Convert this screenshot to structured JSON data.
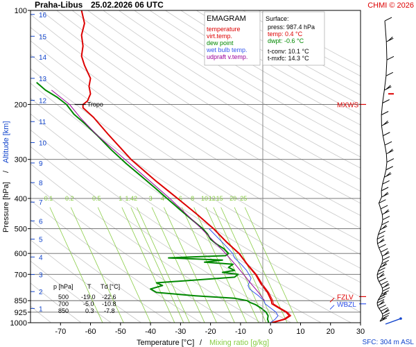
{
  "header": {
    "station": "Praha-Libus",
    "datetime": "25.02.2026 06 UTC",
    "copyright": "CHMI © 2026"
  },
  "chart_data": {
    "type": "line",
    "title": "EMAGRAM",
    "xlabel": "Temperature [°C]",
    "xlabel_sep": "/",
    "xlabel_mixing": "Mixing ratio [g/kg]",
    "ylabel_pressure": "Pressure [hPa]",
    "ylabel_sep": "/",
    "ylabel_altitude": "Altitude [km]",
    "xlim": [
      -80,
      30
    ],
    "ylim": [
      1000,
      100
    ],
    "x_ticks": [
      -70,
      -60,
      -50,
      -40,
      -30,
      -20,
      -10,
      0,
      10,
      20,
      30
    ],
    "pressure_ticks": [
      100,
      200,
      300,
      400,
      500,
      600,
      700,
      850,
      925,
      1000
    ],
    "pressure_gridlines": [
      200,
      300,
      400,
      500,
      600,
      700,
      850,
      925
    ],
    "altitude_ticks": [
      {
        "km": "1",
        "p": 900
      },
      {
        "km": "2",
        "p": 795
      },
      {
        "km": "3",
        "p": 701
      },
      {
        "km": "4",
        "p": 616
      },
      {
        "km": "5",
        "p": 540
      },
      {
        "km": "6",
        "p": 472
      },
      {
        "km": "7",
        "p": 411
      },
      {
        "km": "8",
        "p": 356
      },
      {
        "km": "9",
        "p": 308
      },
      {
        "km": "10",
        "p": 265
      },
      {
        "km": "11",
        "p": 227
      },
      {
        "km": "12",
        "p": 194
      },
      {
        "km": "13",
        "p": 165
      },
      {
        "km": "14",
        "p": 141
      },
      {
        "km": "15",
        "p": 121
      },
      {
        "km": "16",
        "p": 103
      }
    ],
    "mixing_ratio_labels": [
      "0.1",
      "0.2",
      "0.5",
      "1",
      "1.4",
      "2",
      "3",
      "4",
      "6",
      "8",
      "10",
      "12",
      "15",
      "20",
      "25"
    ],
    "mixing_ratio_label_x": [
      -74,
      -67,
      -58,
      -50,
      -47,
      -45,
      -40,
      -36,
      -30,
      -26,
      -22,
      -19.5,
      -17,
      -12.5,
      -9
    ],
    "mixing_ratio_label_p": 410,
    "series": [
      {
        "name": "temperature",
        "color": "#dd0000",
        "points": [
          [
            1000,
            0.4
          ],
          [
            975,
            4.5
          ],
          [
            950,
            6.3
          ],
          [
            925,
            5.2
          ],
          [
            900,
            3.0
          ],
          [
            870,
            0.5
          ],
          [
            850,
            0.3
          ],
          [
            800,
            -1.0
          ],
          [
            750,
            -3.2
          ],
          [
            700,
            -5.0
          ],
          [
            650,
            -7.8
          ],
          [
            600,
            -10.5
          ],
          [
            550,
            -14.8
          ],
          [
            500,
            -19.0
          ],
          [
            450,
            -24.5
          ],
          [
            400,
            -31.0
          ],
          [
            350,
            -38.5
          ],
          [
            300,
            -46.5
          ],
          [
            250,
            -54.0
          ],
          [
            220,
            -59.0
          ],
          [
            205,
            -62.5
          ],
          [
            200,
            -62.5
          ],
          [
            195,
            -61.0
          ],
          [
            185,
            -60.0
          ],
          [
            175,
            -60.5
          ],
          [
            165,
            -60.0
          ],
          [
            150,
            -62.0
          ],
          [
            140,
            -63.0
          ],
          [
            130,
            -62.5
          ],
          [
            120,
            -63.0
          ],
          [
            110,
            -62.0
          ],
          [
            100,
            -63.0
          ]
        ]
      },
      {
        "name": "virt.temp.",
        "color": "#dd0000",
        "points": [
          [
            1000,
            0.9
          ],
          [
            975,
            5.0
          ],
          [
            950,
            6.8
          ],
          [
            925,
            5.7
          ],
          [
            900,
            3.5
          ],
          [
            870,
            1.0
          ],
          [
            850,
            0.8
          ],
          [
            800,
            -0.6
          ],
          [
            750,
            -2.8
          ],
          [
            700,
            -4.7
          ],
          [
            650,
            -7.6
          ],
          [
            600,
            -10.3
          ],
          [
            550,
            -14.6
          ],
          [
            500,
            -18.9
          ],
          [
            450,
            -24.4
          ],
          [
            400,
            -30.9
          ],
          [
            350,
            -38.4
          ],
          [
            300,
            -46.4
          ],
          [
            250,
            -54.0
          ],
          [
            220,
            -59.0
          ],
          [
            205,
            -62.5
          ],
          [
            200,
            -62.5
          ]
        ]
      },
      {
        "name": "dew point",
        "color": "#008800",
        "points": [
          [
            1000,
            -0.6
          ],
          [
            975,
            -1.0
          ],
          [
            950,
            -0.8
          ],
          [
            925,
            -1.5
          ],
          [
            900,
            -3.0
          ],
          [
            875,
            -5.0
          ],
          [
            860,
            -7.0
          ],
          [
            850,
            -7.8
          ],
          [
            835,
            -12.0
          ],
          [
            820,
            -25.0
          ],
          [
            800,
            -38.0
          ],
          [
            780,
            -40.0
          ],
          [
            760,
            -36.0
          ],
          [
            745,
            -38.0
          ],
          [
            730,
            -25.0
          ],
          [
            715,
            -12.0
          ],
          [
            700,
            -10.8
          ],
          [
            690,
            -16.0
          ],
          [
            680,
            -12.0
          ],
          [
            665,
            -14.0
          ],
          [
            650,
            -12.5
          ],
          [
            640,
            -22.0
          ],
          [
            630,
            -16.0
          ],
          [
            620,
            -34.0
          ],
          [
            610,
            -15.0
          ],
          [
            600,
            -14.0
          ],
          [
            580,
            -15.5
          ],
          [
            560,
            -18.0
          ],
          [
            540,
            -20.0
          ],
          [
            520,
            -21.0
          ],
          [
            500,
            -22.6
          ],
          [
            470,
            -26.0
          ],
          [
            440,
            -29.5
          ],
          [
            400,
            -34.5
          ],
          [
            370,
            -38.5
          ],
          [
            340,
            -43.0
          ],
          [
            310,
            -48.0
          ],
          [
            280,
            -53.0
          ],
          [
            250,
            -58.0
          ],
          [
            230,
            -62.0
          ],
          [
            215,
            -65.5
          ],
          [
            200,
            -68.0
          ],
          [
            190,
            -71.0
          ],
          [
            180,
            -75.0
          ],
          [
            170,
            -78.0
          ]
        ]
      },
      {
        "name": "wet bulb temp.",
        "color": "#3355ee",
        "points": [
          [
            1000,
            -0.1
          ],
          [
            975,
            1.5
          ],
          [
            950,
            2.5
          ],
          [
            925,
            1.8
          ],
          [
            900,
            0.2
          ],
          [
            870,
            -1.8
          ],
          [
            850,
            -2.2
          ],
          [
            820,
            -4.0
          ],
          [
            800,
            -5.5
          ],
          [
            780,
            -7.0
          ],
          [
            760,
            -7.5
          ],
          [
            740,
            -7.0
          ],
          [
            720,
            -6.5
          ],
          [
            700,
            -7.2
          ],
          [
            680,
            -8.0
          ],
          [
            650,
            -9.8
          ],
          [
            620,
            -12.0
          ],
          [
            600,
            -12.6
          ],
          [
            560,
            -15.5
          ],
          [
            500,
            -20.5
          ]
        ]
      },
      {
        "name": "udpraft v.temp.",
        "color": "#990099",
        "points": [
          [
            850,
            -2.0
          ],
          [
            800,
            -4.0
          ],
          [
            750,
            -6.5
          ],
          [
            700,
            -9.0
          ],
          [
            650,
            -11.8
          ],
          [
            600,
            -15.0
          ],
          [
            550,
            -18.8
          ],
          [
            500,
            -23.0
          ],
          [
            450,
            -28.0
          ],
          [
            400,
            -33.6
          ],
          [
            350,
            -40.5
          ],
          [
            300,
            -48.5
          ],
          [
            250,
            -58.0
          ],
          [
            220,
            -63.5
          ],
          [
            200,
            -67.0
          ],
          [
            180,
            -73.0
          ]
        ]
      }
    ],
    "annotations": [
      {
        "text": "Tropo",
        "p": 200,
        "x": -62.5
      },
      {
        "text": "MXWS",
        "p": 200,
        "side": "right",
        "color": "#dd0000"
      },
      {
        "text": "FZLV",
        "p": 825,
        "side": "right",
        "color": "#dd0000"
      },
      {
        "text": "WBZL",
        "p": 870,
        "side": "right",
        "color": "#3355ee"
      }
    ],
    "surface": {
      "title": "Surface:",
      "press": "press: 987.4 hPa",
      "temp": "temp: 0.4 °C",
      "dwpt": "dwpt: -0.6 °C",
      "tconv": "t-conv: 10.1 °C",
      "tmxfc": "t-mxfc: 14.3 °C"
    },
    "levels_table": {
      "headers": [
        "p [hPa]",
        "T",
        "Td [°C]"
      ],
      "rows": [
        [
          "500",
          "-19.0",
          "-22.6"
        ],
        [
          "700",
          "-5.0",
          "-10.8"
        ],
        [
          "850",
          "0.3",
          "-7.8"
        ]
      ]
    },
    "sfc_label": "SFC: 304 m ASL",
    "colors": {
      "temperature": "#dd0000",
      "dew_point": "#008800",
      "wet_bulb": "#3355ee",
      "updraft": "#990099",
      "altitude_axis": "#1144cc",
      "mixing_ratio": "#88cc44",
      "dry_adiabat": "#c8c8c8"
    }
  }
}
